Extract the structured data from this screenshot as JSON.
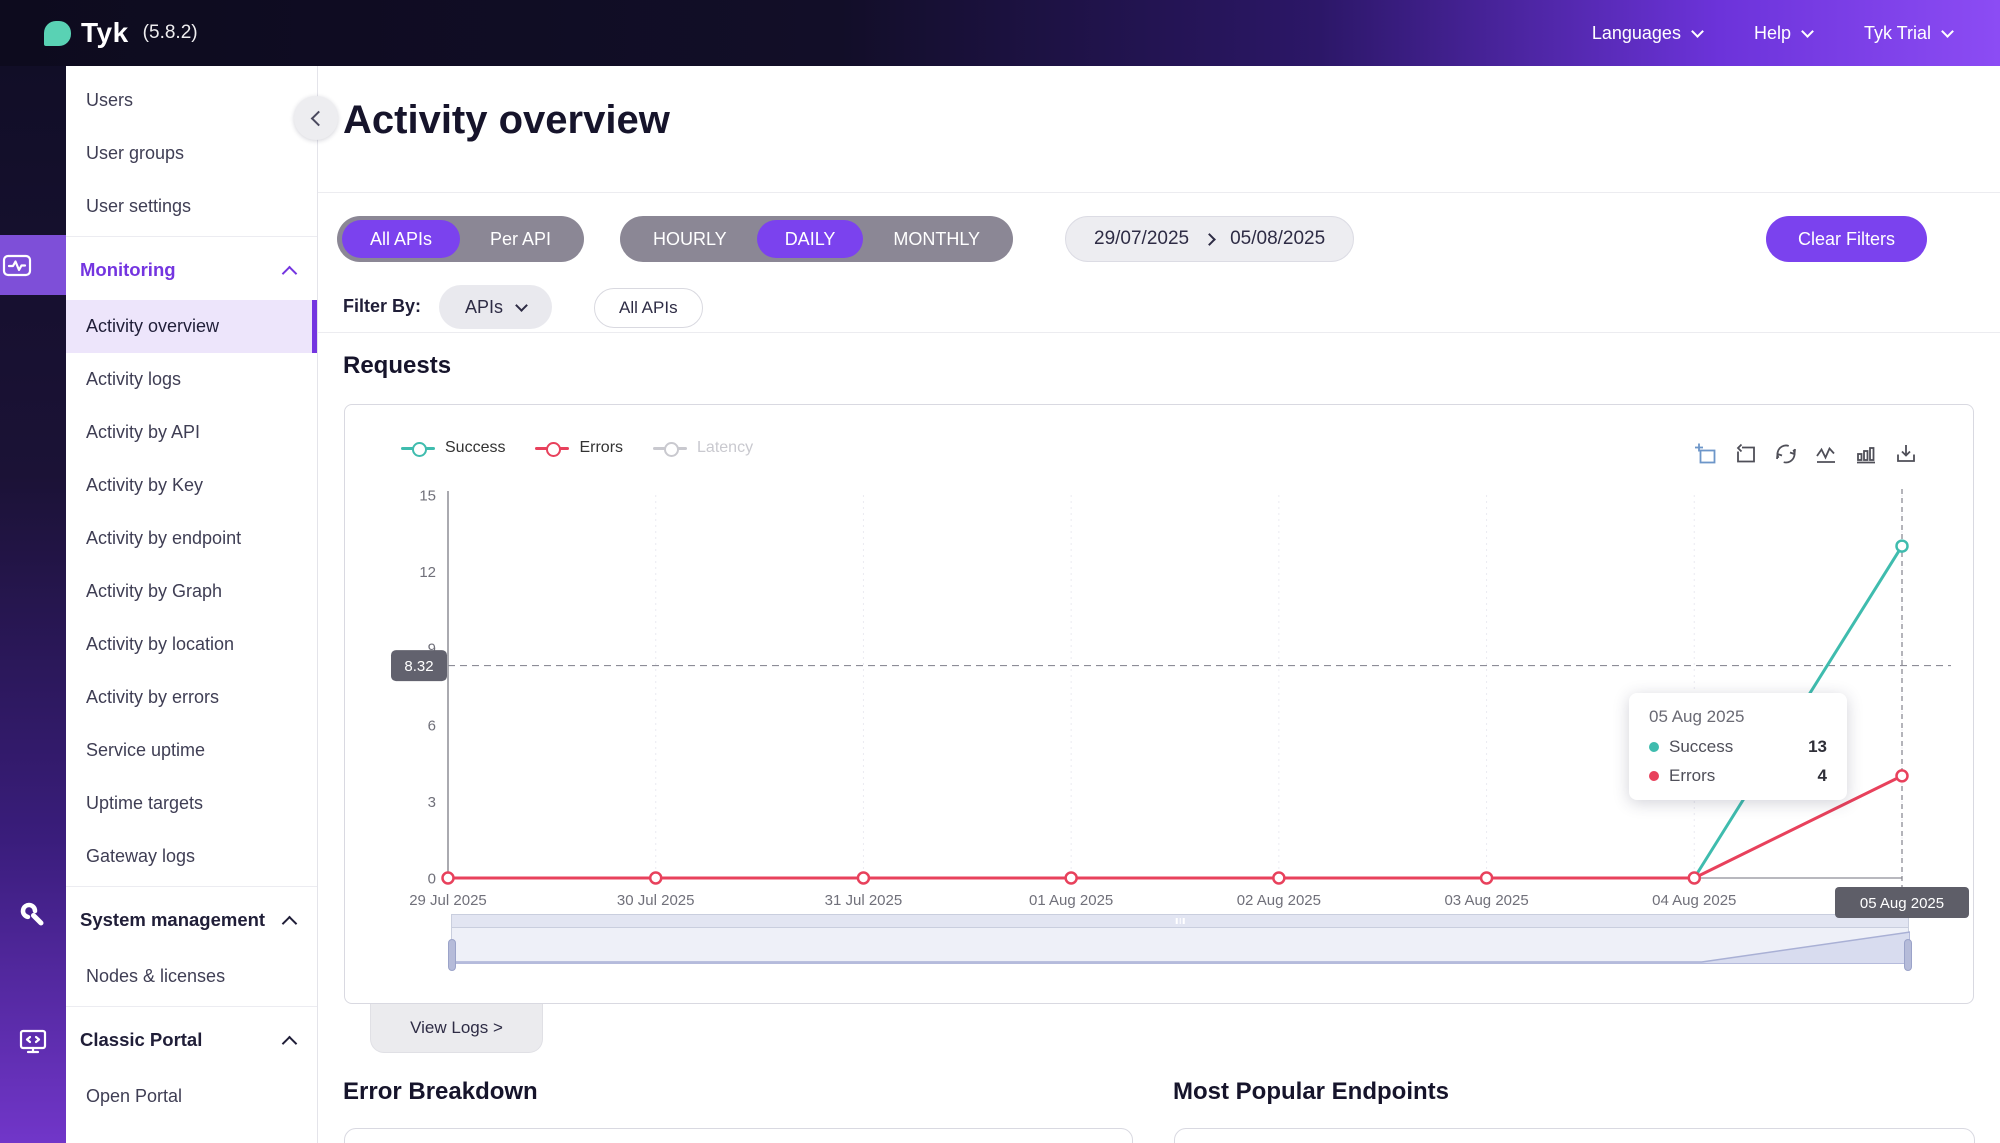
{
  "app": {
    "brand": "Tyk",
    "version": "(5.8.2)"
  },
  "topbar": {
    "menus": [
      {
        "label": "Languages"
      },
      {
        "label": "Help"
      },
      {
        "label": "Tyk Trial"
      }
    ]
  },
  "sidebar": {
    "items": [
      {
        "type": "item",
        "label": "Users"
      },
      {
        "type": "item",
        "label": "User groups"
      },
      {
        "type": "item",
        "label": "User settings"
      },
      {
        "type": "divider"
      },
      {
        "type": "section",
        "label": "Monitoring",
        "accent": true,
        "expanded": true
      },
      {
        "type": "item",
        "label": "Activity overview",
        "selected": true
      },
      {
        "type": "item",
        "label": "Activity logs"
      },
      {
        "type": "item",
        "label": "Activity by API"
      },
      {
        "type": "item",
        "label": "Activity by Key"
      },
      {
        "type": "item",
        "label": "Activity by endpoint"
      },
      {
        "type": "item",
        "label": "Activity by Graph"
      },
      {
        "type": "item",
        "label": "Activity by location"
      },
      {
        "type": "item",
        "label": "Activity by errors"
      },
      {
        "type": "item",
        "label": "Service uptime"
      },
      {
        "type": "item",
        "label": "Uptime targets"
      },
      {
        "type": "item",
        "label": "Gateway logs"
      },
      {
        "type": "divider"
      },
      {
        "type": "section",
        "label": "System management",
        "expanded": true
      },
      {
        "type": "item",
        "label": "Nodes & licenses"
      },
      {
        "type": "divider"
      },
      {
        "type": "section",
        "label": "Classic Portal",
        "expanded": true
      },
      {
        "type": "item",
        "label": "Open Portal"
      }
    ]
  },
  "header": {
    "title": "Activity overview"
  },
  "filters": {
    "api_toggle": {
      "options": [
        "All APIs",
        "Per API"
      ],
      "active": "All APIs"
    },
    "interval_toggle": {
      "options": [
        "HOURLY",
        "DAILY",
        "MONTHLY"
      ],
      "active": "DAILY"
    },
    "date_range": {
      "start": "29/07/2025",
      "end": "05/08/2025"
    },
    "clear_button": "Clear Filters",
    "filter_by_label": "Filter By:",
    "filter_dropdown": "APIs",
    "filter_chip": "All APIs"
  },
  "requests_section": {
    "title": "Requests",
    "view_logs_label": "View Logs >"
  },
  "chart_toolbar": [
    {
      "name": "zoom-select-icon"
    },
    {
      "name": "zoom-reset-icon"
    },
    {
      "name": "restore-icon"
    },
    {
      "name": "line-chart-icon"
    },
    {
      "name": "bar-chart-icon"
    },
    {
      "name": "download-icon"
    }
  ],
  "chart_data": {
    "type": "line",
    "title": "Requests",
    "x": [
      "29 Jul 2025",
      "30 Jul 2025",
      "31 Jul 2025",
      "01 Aug 2025",
      "02 Aug 2025",
      "03 Aug 2025",
      "04 Aug 2025",
      "05 Aug 2025"
    ],
    "series": [
      {
        "name": "Success",
        "color": "#3fbcae",
        "values": [
          0,
          0,
          0,
          0,
          0,
          0,
          0,
          13
        ]
      },
      {
        "name": "Errors",
        "color": "#e8415c",
        "values": [
          0,
          0,
          0,
          0,
          0,
          0,
          0,
          4
        ]
      }
    ],
    "legend": [
      {
        "name": "Success",
        "color": "#3fbcae",
        "enabled": true
      },
      {
        "name": "Errors",
        "color": "#e8415c",
        "enabled": true
      },
      {
        "name": "Latency",
        "color": "#c9c9cf",
        "enabled": false
      }
    ],
    "ylim": [
      0,
      15
    ],
    "yticks": [
      0,
      3,
      6,
      9,
      12,
      15
    ],
    "average_markline": {
      "value": 8.32,
      "label": "8.32"
    },
    "axis_pointer": {
      "index": 7,
      "label": "05 Aug 2025"
    },
    "tooltip": {
      "title": "05 Aug 2025",
      "rows": [
        {
          "name": "Success",
          "value": "13",
          "color": "#3fbcae"
        },
        {
          "name": "Errors",
          "value": "4",
          "color": "#e8415c"
        }
      ]
    },
    "legend_position": "top-left",
    "grid": "vertical-dotted"
  },
  "bottom_sections": [
    {
      "title": "Error Breakdown"
    },
    {
      "title": "Most Popular Endpoints"
    }
  ],
  "colors": {
    "accent": "#7b42ee",
    "sidebar_accent": "#7435e0",
    "success": "#3fbcae",
    "error": "#e8415c",
    "latency_disabled": "#c9c9cf",
    "brand_teal": "#59d2b4"
  }
}
